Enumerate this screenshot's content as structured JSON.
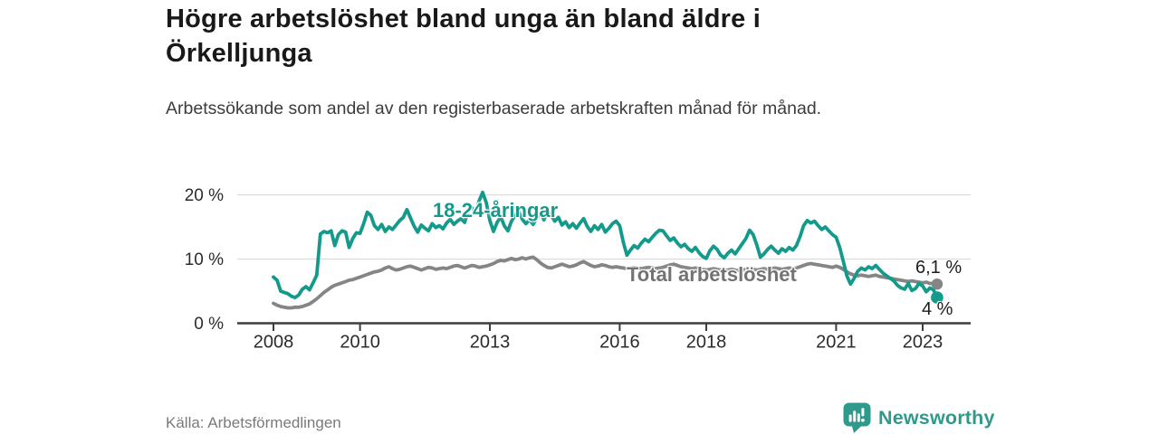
{
  "header": {
    "title": "Högre arbetslöshet bland unga än bland äldre i Örkelljunga",
    "subtitle": "Arbetssökande som andel av den registerbaserade arbetskraften månad för månad."
  },
  "footer": {
    "source": "Källa: Arbetsförmedlingen",
    "logo_text": "Newsworthy"
  },
  "colors": {
    "youth_line": "#149a8b",
    "total_line": "#858585",
    "total_label": "#737373",
    "axis_line": "#3d3d3d",
    "grid_line": "#dcdcdc",
    "tick_text": "#2b2b2b",
    "value_text": "#1d1d1d",
    "logo_teal": "#2f9a8c",
    "background": "#ffffff"
  },
  "chart_data": {
    "type": "line",
    "title": "Högre arbetslöshet bland unga än bland äldre i Örkelljunga",
    "subtitle": "Arbetssökande som andel av den registerbaserade arbetskraften månad för månad.",
    "source": "Källa: Arbetsförmedlingen",
    "unit": "%",
    "grid": "horizontal",
    "legend": "inline-labels",
    "x_start_year": 2008,
    "x_step_months": 1,
    "x_end": "2023-05",
    "ylim": [
      0,
      22
    ],
    "y_ticks": [
      {
        "value": 0,
        "label": "0 %"
      },
      {
        "value": 10,
        "label": "10 %"
      },
      {
        "value": 20,
        "label": "20 %"
      }
    ],
    "x_ticks": [
      {
        "value": 2008,
        "label": "2008"
      },
      {
        "value": 2010,
        "label": "2010"
      },
      {
        "value": 2013,
        "label": "2013"
      },
      {
        "value": 2016,
        "label": "2016"
      },
      {
        "value": 2018,
        "label": "2018"
      },
      {
        "value": 2021,
        "label": "2021"
      },
      {
        "value": 2023,
        "label": "2023"
      }
    ],
    "series": [
      {
        "name": "18-24-åringar",
        "end_label": "4 %",
        "end_value": 4.0,
        "color": "#149a8b",
        "values": [
          7.2,
          6.7,
          5.0,
          4.8,
          4.6,
          4.2,
          4.0,
          4.4,
          5.3,
          5.7,
          5.2,
          6.3,
          7.5,
          13.9,
          14.3,
          14.1,
          14.4,
          12.1,
          13.8,
          14.4,
          14.2,
          11.8,
          13.2,
          14.1,
          14.0,
          15.5,
          17.3,
          16.8,
          15.2,
          14.6,
          15.4,
          14.3,
          15.0,
          14.6,
          15.3,
          16.0,
          16.5,
          17.7,
          16.4,
          15.1,
          14.2,
          15.3,
          14.8,
          14.4,
          15.5,
          14.9,
          15.2,
          14.7,
          15.6,
          16.2,
          15.4,
          15.9,
          16.3,
          15.7,
          17.5,
          18.0,
          17.2,
          19.0,
          20.4,
          18.8,
          16.0,
          14.3,
          15.7,
          16.6,
          15.2,
          14.4,
          15.9,
          16.8,
          17.4,
          16.2,
          15.5,
          16.1,
          15.4,
          16.4,
          17.2,
          16.1,
          17.5,
          16.8,
          15.9,
          16.5,
          15.3,
          15.8,
          14.9,
          15.5,
          14.8,
          15.6,
          16.3,
          15.1,
          14.3,
          15.2,
          14.6,
          15.4,
          14.2,
          14.8,
          15.5,
          15.9,
          15.2,
          12.6,
          10.6,
          11.4,
          12.1,
          11.7,
          12.5,
          13.1,
          12.7,
          13.4,
          14.0,
          14.5,
          14.4,
          13.6,
          12.9,
          13.3,
          12.5,
          11.9,
          12.3,
          11.6,
          11.2,
          11.8,
          11.0,
          10.4,
          10.1,
          11.3,
          12.0,
          11.5,
          10.6,
          10.2,
          10.9,
          11.4,
          10.8,
          11.6,
          12.4,
          13.2,
          14.5,
          13.8,
          12.2,
          10.3,
          10.8,
          11.5,
          12.0,
          11.4,
          10.9,
          11.6,
          11.2,
          11.8,
          11.4,
          12.1,
          13.5,
          15.2,
          16.0,
          15.6,
          15.9,
          15.2,
          14.6,
          15.0,
          14.4,
          13.8,
          13.4,
          11.8,
          9.6,
          7.4,
          6.1,
          7.0,
          8.1,
          8.6,
          8.3,
          8.8,
          8.5,
          9.0,
          8.4,
          7.8,
          7.4,
          7.0,
          6.6,
          5.9,
          5.5,
          5.3,
          6.2,
          5.1,
          5.4,
          6.2,
          5.8,
          4.9,
          5.5,
          5.2,
          4.0
        ]
      },
      {
        "name": "Total arbetslöshet",
        "end_label": "6,1 %",
        "end_value": 6.1,
        "color": "#858585",
        "values": [
          3.1,
          2.8,
          2.6,
          2.5,
          2.4,
          2.4,
          2.5,
          2.5,
          2.6,
          2.8,
          3.0,
          3.4,
          3.8,
          4.3,
          4.8,
          5.2,
          5.6,
          5.9,
          6.1,
          6.3,
          6.5,
          6.7,
          6.8,
          7.0,
          7.2,
          7.4,
          7.6,
          7.8,
          8.0,
          8.1,
          8.3,
          8.6,
          8.8,
          8.5,
          8.3,
          8.4,
          8.6,
          8.8,
          8.9,
          8.7,
          8.5,
          8.3,
          8.5,
          8.7,
          8.6,
          8.4,
          8.5,
          8.6,
          8.5,
          8.7,
          8.9,
          9.0,
          8.8,
          8.6,
          8.8,
          9.0,
          8.9,
          8.7,
          8.8,
          8.9,
          9.1,
          9.3,
          9.6,
          9.8,
          9.7,
          9.9,
          10.1,
          9.9,
          10.0,
          10.2,
          10.0,
          10.2,
          10.3,
          9.9,
          9.4,
          9.0,
          8.7,
          8.6,
          8.8,
          9.0,
          9.2,
          9.0,
          8.8,
          8.9,
          9.1,
          9.4,
          9.6,
          9.3,
          9.0,
          8.8,
          8.9,
          9.1,
          9.0,
          8.8,
          8.7,
          8.8,
          8.7,
          8.6,
          8.5,
          8.6,
          8.7,
          8.6,
          8.5,
          8.6,
          8.7,
          8.6,
          8.5,
          8.6,
          8.7,
          8.9,
          9.1,
          9.2,
          9.0,
          8.8,
          8.7,
          8.6,
          8.5,
          8.6,
          8.5,
          8.4,
          8.3,
          8.4,
          8.5,
          8.4,
          8.3,
          8.2,
          8.3,
          8.4,
          8.3,
          8.2,
          8.3,
          8.4,
          8.5,
          8.4,
          8.3,
          8.4,
          8.5,
          8.4,
          8.5,
          8.6,
          8.5,
          8.4,
          8.5,
          8.6,
          8.5,
          8.6,
          8.8,
          9.0,
          9.2,
          9.3,
          9.2,
          9.1,
          9.0,
          8.9,
          8.8,
          8.7,
          8.9,
          8.7,
          8.4,
          8.0,
          7.7,
          7.5,
          7.4,
          7.5,
          7.4,
          7.3,
          7.4,
          7.5,
          7.3,
          7.2,
          7.1,
          7.0,
          6.9,
          6.8,
          6.7,
          6.6,
          6.5,
          6.6,
          6.5,
          6.4,
          6.3,
          6.4,
          6.2,
          6.2,
          6.1
        ]
      }
    ]
  }
}
